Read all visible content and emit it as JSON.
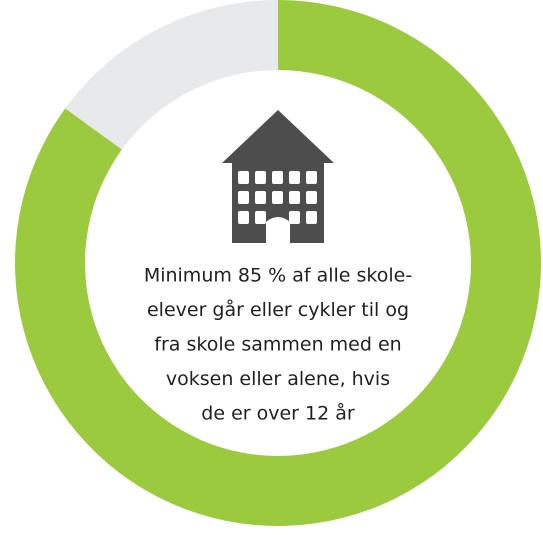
{
  "chart_data": {
    "type": "donut",
    "categories": [
      null,
      null
    ],
    "values": [
      85,
      15
    ],
    "colors": [
      "#9bca3e",
      "#e8e9ea"
    ],
    "annotation_lines": [
      "Minimum 85 % af alle skole-",
      "elever går eller cykler til og",
      "fra skole sammen med en",
      "voksen eller alene, hvis",
      "de er over 12 år"
    ]
  }
}
